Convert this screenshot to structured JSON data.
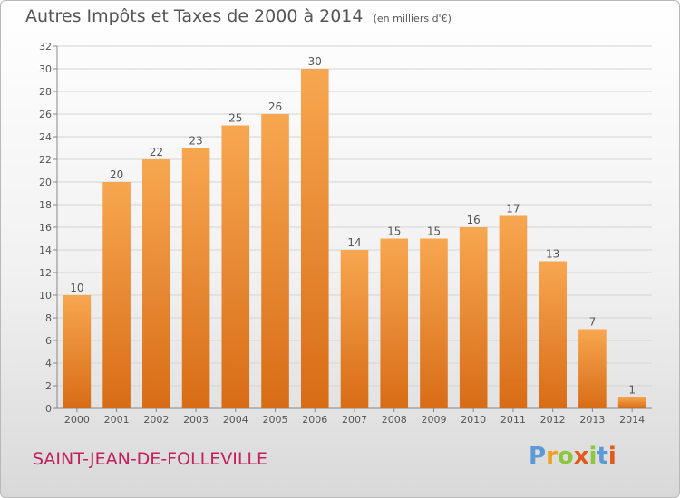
{
  "title": "Autres Impôts et Taxes de 2000 à 2014",
  "subtitle": "(en milliers d'€)",
  "commune": "SAINT-JEAN-DE-FOLLEVILLE",
  "logo": {
    "letters": [
      "P",
      "r",
      "o",
      "x",
      "i",
      "t",
      "i"
    ],
    "colors": [
      "#5c9ad6",
      "#f0a020",
      "#8dc63f",
      "#e05a1e",
      "#8dc63f",
      "#5c9ad6",
      "#e05a1e"
    ]
  },
  "chart_data": {
    "type": "bar",
    "title": "Autres Impôts et Taxes de 2000 à 2014",
    "subtitle": "(en milliers d'€)",
    "categories": [
      "2000",
      "2001",
      "2002",
      "2003",
      "2004",
      "2005",
      "2006",
      "2007",
      "2008",
      "2009",
      "2010",
      "2011",
      "2012",
      "2013",
      "2014"
    ],
    "values": [
      10,
      20,
      22,
      23,
      25,
      26,
      30,
      14,
      15,
      15,
      16,
      17,
      13,
      7,
      1
    ],
    "ylim": [
      0,
      32
    ],
    "yticks": [
      0,
      2,
      4,
      6,
      8,
      10,
      12,
      14,
      16,
      18,
      20,
      22,
      24,
      26,
      28,
      30,
      32
    ],
    "grid": true,
    "colors": {
      "bar_top": "#f7a750",
      "bar_bottom": "#d86c16"
    }
  }
}
